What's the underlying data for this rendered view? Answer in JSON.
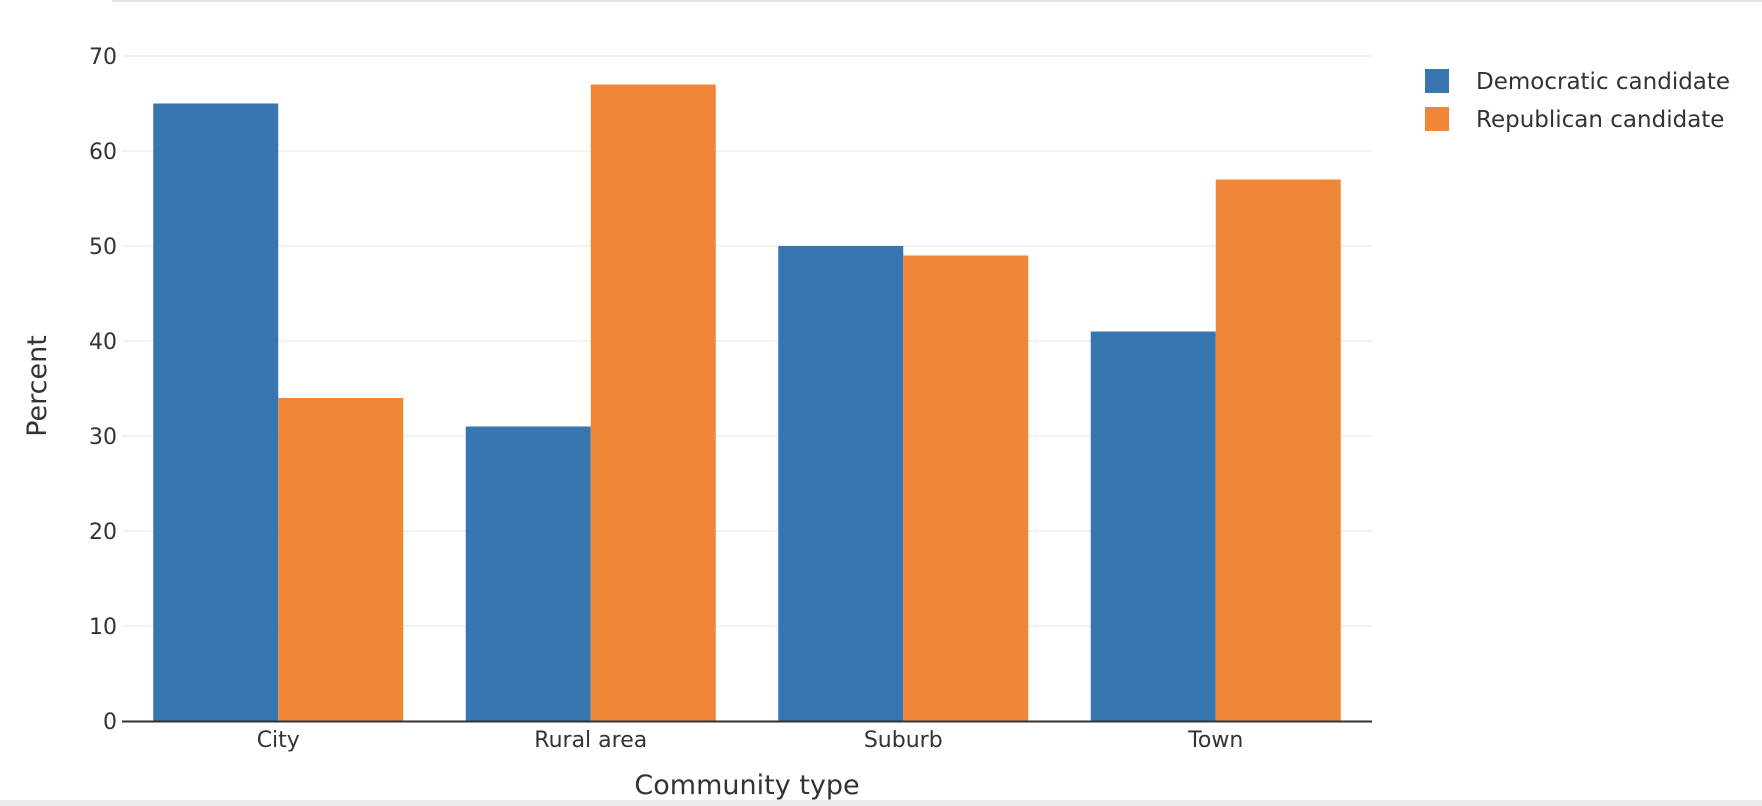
{
  "chart_data": {
    "type": "bar",
    "categories": [
      "City",
      "Rural area",
      "Suburb",
      "Town"
    ],
    "series": [
      {
        "name": "Democratic candidate",
        "values": [
          65,
          31,
          50,
          41
        ],
        "color": "#3776b0"
      },
      {
        "name": "Republican candidate",
        "values": [
          34,
          67,
          49,
          57
        ],
        "color": "#f08637"
      }
    ],
    "title": "",
    "xlabel": "Community type",
    "ylabel": "Percent",
    "ylim": [
      0,
      70
    ],
    "yticks": [
      0,
      10,
      20,
      30,
      40,
      50,
      60,
      70
    ],
    "grid": true,
    "legend_position": "top-right"
  }
}
